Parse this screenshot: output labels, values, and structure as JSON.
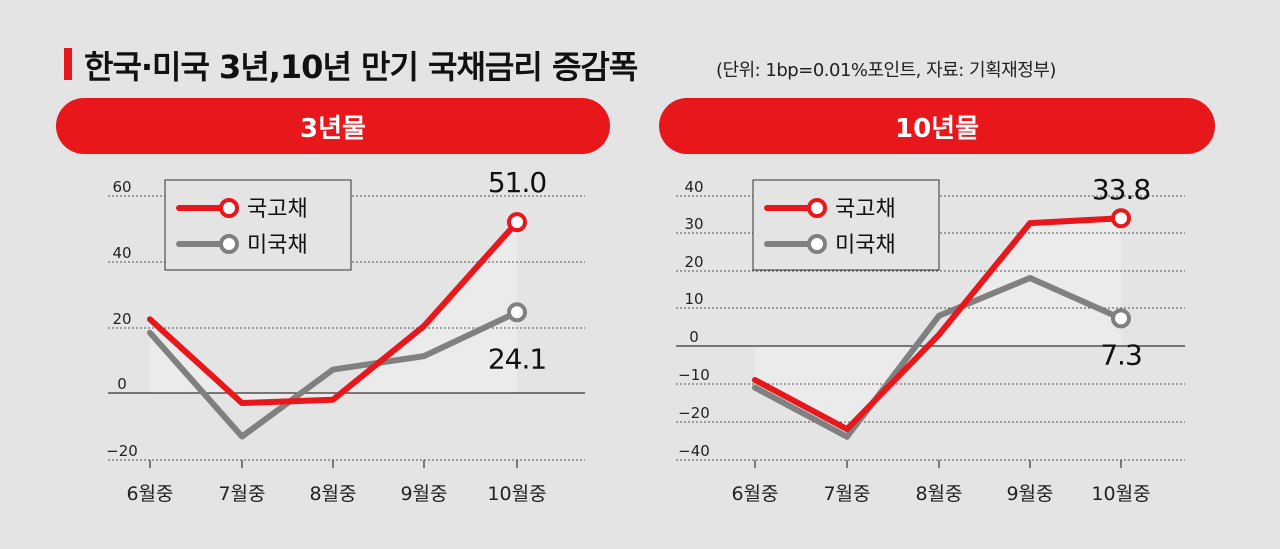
{
  "title": "한국·미국 3년,10년 만기 국채금리 증감폭",
  "subtitle": "(단위: 1bp=0.01%포인트, 자료: 기획재정부)",
  "colors": {
    "accent": "#e8171b",
    "us": "#808080"
  },
  "chart_data": [
    {
      "type": "line",
      "title": "3년물",
      "categories": [
        "6월중",
        "7월중",
        "8월중",
        "9월중",
        "10월중"
      ],
      "yticks": [
        60,
        40,
        20,
        0,
        -20
      ],
      "ylim": [
        -20,
        60
      ],
      "grid": true,
      "legend": "top-left",
      "series": [
        {
          "name": "국고채",
          "values": [
            22,
            -3,
            -2,
            20,
            51.0
          ]
        },
        {
          "name": "미국채",
          "values": [
            18,
            -13,
            7,
            11,
            24.1
          ]
        }
      ],
      "annotations": [
        "51.0",
        "24.1"
      ]
    },
    {
      "type": "line",
      "title": "10년물",
      "categories": [
        "6월중",
        "7월중",
        "8월중",
        "9월중",
        "10월중"
      ],
      "yticks": [
        40,
        30,
        20,
        10,
        0,
        -10,
        -20,
        -40
      ],
      "ylim": [
        -40,
        40
      ],
      "grid": true,
      "legend": "top-left",
      "series": [
        {
          "name": "국고채",
          "values": [
            -9,
            -22,
            3,
            32.5,
            33.8
          ]
        },
        {
          "name": "미국채",
          "values": [
            -11,
            -24,
            8,
            18,
            7.3
          ]
        }
      ],
      "annotations": [
        "33.8",
        "7.3"
      ]
    }
  ]
}
